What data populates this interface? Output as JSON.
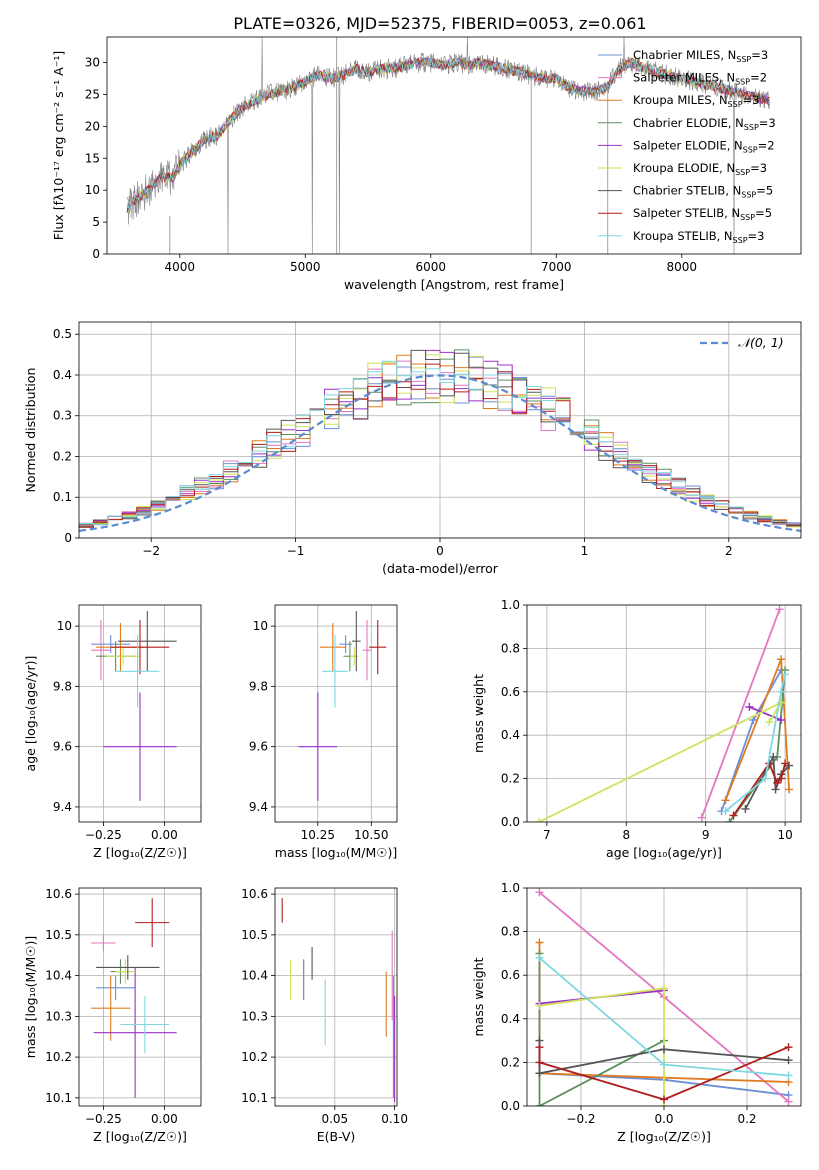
{
  "figure": {
    "title": "PLATE=0326, MJD=52375, FIBERID=0053, z=0.061"
  },
  "legend_names": [
    {
      "pre": "Chabrier MILES, N",
      "sub": "SSP",
      "post": "=3",
      "color": "#6b8fd6"
    },
    {
      "pre": "Salpeter MILES, N",
      "sub": "SSP",
      "post": "=2",
      "color": "#e377c2"
    },
    {
      "pre": "Kroupa MILES, N",
      "sub": "SSP",
      "post": "=3",
      "color": "#e07b1f"
    },
    {
      "pre": "Chabrier ELODIE, N",
      "sub": "SSP",
      "post": "=3",
      "color": "#5f8f5f"
    },
    {
      "pre": "Salpeter ELODIE, N",
      "sub": "SSP",
      "post": "=2",
      "color": "#9b30c8"
    },
    {
      "pre": "Kroupa ELODIE, N",
      "sub": "SSP",
      "post": "=3",
      "color": "#cfe35a"
    },
    {
      "pre": "Chabrier STELIB, N",
      "sub": "SSP",
      "post": "=5",
      "color": "#555555"
    },
    {
      "pre": "Salpeter STELIB, N",
      "sub": "SSP",
      "post": "=5",
      "color": "#b01d1d"
    },
    {
      "pre": "Kroupa STELIB, N",
      "sub": "SSP",
      "post": "=3",
      "color": "#7fd8e0"
    }
  ],
  "chart_data": [
    {
      "type": "line",
      "xlabel": "wavelength [Angstrom, rest frame]",
      "ylabel": "Flux [fλ10⁻¹⁷ erg cm⁻² s⁻¹ A⁻¹]",
      "xlim": [
        3420,
        8950
      ],
      "ylim": [
        0,
        34
      ],
      "xticks": [
        4000,
        5000,
        6000,
        7000,
        8000
      ],
      "yticks": [
        0,
        5,
        10,
        15,
        20,
        25,
        30
      ],
      "grid": false,
      "legend": "right",
      "data_color": "#7f7f7f",
      "spectrum": {
        "x": [
          3580,
          3620,
          3680,
          3750,
          3850,
          3950,
          4000,
          4100,
          4200,
          4300,
          4400,
          4500,
          4600,
          4700,
          4800,
          4900,
          5000,
          5100,
          5200,
          5300,
          5400,
          5500,
          5600,
          5700,
          5800,
          5900,
          6000,
          6100,
          6200,
          6300,
          6400,
          6500,
          6600,
          6700,
          6800,
          6900,
          7000,
          7100,
          7200,
          7300,
          7400,
          7500,
          7600,
          7700,
          7800,
          7900,
          8000,
          8100,
          8200,
          8300,
          8400,
          8500,
          8600,
          8700
        ],
        "y": [
          7,
          8,
          9,
          10,
          12,
          12,
          14,
          16,
          18,
          18.5,
          21,
          23,
          24,
          25,
          25.5,
          26,
          27,
          28,
          27.5,
          28,
          29,
          28.5,
          29,
          29,
          29.5,
          30,
          30,
          29.5,
          30,
          29.5,
          30,
          29.5,
          29,
          28.5,
          28,
          27.5,
          27.5,
          26,
          25.5,
          25.5,
          26,
          29,
          30,
          29,
          28.5,
          28,
          27.5,
          27,
          26.5,
          26,
          25.5,
          25,
          24.5,
          24
        ]
      },
      "model_end_x": [
        8700,
        8600,
        8350,
        8700,
        8700,
        8600,
        8700,
        8700,
        8450
      ]
    },
    {
      "type": "step",
      "xlabel": "(data-model)/error",
      "ylabel": "Normed distribution",
      "xlim": [
        -2.5,
        2.5
      ],
      "ylim": [
        0,
        0.53
      ],
      "xticks": [
        -2,
        -1,
        0,
        1,
        2
      ],
      "yticks": [
        0,
        0.1,
        0.2,
        0.3,
        0.4,
        0.5
      ],
      "grid": true,
      "bin_edges": [
        -2.5,
        -2.4,
        -2.3,
        -2.2,
        -2.1,
        -2.0,
        -1.9,
        -1.8,
        -1.7,
        -1.6,
        -1.5,
        -1.4,
        -1.3,
        -1.2,
        -1.1,
        -1.0,
        -0.9,
        -0.8,
        -0.7,
        -0.6,
        -0.5,
        -0.4,
        -0.3,
        -0.2,
        -0.1,
        0.0,
        0.1,
        0.2,
        0.3,
        0.4,
        0.5,
        0.6,
        0.7,
        0.8,
        0.9,
        1.0,
        1.1,
        1.2,
        1.3,
        1.4,
        1.5,
        1.6,
        1.7,
        1.8,
        1.9,
        2.0,
        2.1,
        2.2,
        2.3,
        2.4,
        2.5
      ],
      "reference_curve": {
        "label": "𝒩(0, 1)",
        "color": "#5b8bd0",
        "legend": "top-right"
      },
      "residual_seeds": [
        1,
        2,
        3,
        4,
        5,
        6,
        7,
        8,
        9
      ]
    },
    {
      "type": "errorbar",
      "xlabel": "Z [log₁₀(Z/Z☉)]",
      "ylabel": "age  [log₁₀(age/yr)]",
      "xlim": [
        -0.35,
        0.15
      ],
      "ylim": [
        9.35,
        10.07
      ],
      "xticks": [
        -0.25,
        0.0
      ],
      "xticklabels": [
        "−0.25",
        "0.00"
      ],
      "yticks": [
        9.4,
        9.6,
        9.8,
        10.0
      ],
      "points": [
        {
          "x": -0.22,
          "xerr": 0.08,
          "y": 9.94,
          "yerr": 0.03
        },
        {
          "x": -0.26,
          "xerr": 0.04,
          "y": 9.92,
          "yerr": 0.1
        },
        {
          "x": -0.18,
          "xerr": 0.1,
          "y": 9.93,
          "yerr": 0.08
        },
        {
          "x": -0.2,
          "xerr": 0.08,
          "y": 9.9,
          "yerr": 0.05
        },
        {
          "x": -0.1,
          "xerr": 0.15,
          "y": 9.6,
          "yerr": 0.18
        },
        {
          "x": -0.17,
          "xerr": 0.07,
          "y": 9.9,
          "yerr": 0.03
        },
        {
          "x": -0.07,
          "xerr": 0.12,
          "y": 9.95,
          "yerr": 0.1
        },
        {
          "x": -0.1,
          "xerr": 0.12,
          "y": 9.93,
          "yerr": 0.09
        },
        {
          "x": -0.11,
          "xerr": 0.09,
          "y": 9.85,
          "yerr": 0.12
        }
      ]
    },
    {
      "type": "errorbar",
      "xlabel": "mass [log₁₀(M/M☉)]",
      "ylabel": "",
      "xlim": [
        10.05,
        10.62
      ],
      "ylim": [
        9.35,
        10.07
      ],
      "xticks": [
        10.25,
        10.5
      ],
      "xticklabels": [
        "10.25",
        "10.50"
      ],
      "yticks": [
        9.4,
        9.6,
        9.8,
        10.0
      ],
      "points": [
        {
          "x": 10.38,
          "xerr": 0.03,
          "y": 9.94,
          "yerr": 0.03
        },
        {
          "x": 10.48,
          "xerr": 0.02,
          "y": 9.92,
          "yerr": 0.1
        },
        {
          "x": 10.32,
          "xerr": 0.06,
          "y": 9.93,
          "yerr": 0.08
        },
        {
          "x": 10.4,
          "xerr": 0.03,
          "y": 9.9,
          "yerr": 0.05
        },
        {
          "x": 10.25,
          "xerr": 0.09,
          "y": 9.6,
          "yerr": 0.18
        },
        {
          "x": 10.42,
          "xerr": 0.02,
          "y": 9.9,
          "yerr": 0.03
        },
        {
          "x": 10.43,
          "xerr": 0.02,
          "y": 9.95,
          "yerr": 0.1
        },
        {
          "x": 10.53,
          "xerr": 0.04,
          "y": 9.93,
          "yerr": 0.09
        },
        {
          "x": 10.33,
          "xerr": 0.06,
          "y": 9.85,
          "yerr": 0.12
        }
      ]
    },
    {
      "type": "line",
      "xlabel": "age  [log₁₀(age/yr)]",
      "ylabel": "mass weight",
      "xlim": [
        6.75,
        10.2
      ],
      "ylim": [
        0,
        1
      ],
      "xticks": [
        7,
        8,
        9,
        10
      ],
      "yticks": [
        0,
        0.2,
        0.4,
        0.6,
        0.8,
        1.0
      ],
      "yticklabels": [
        "0.0",
        "0.2",
        "0.4",
        "0.6",
        "0.8",
        "1.0"
      ],
      "grid": true,
      "series": [
        {
          "x": [
            9.2,
            9.6,
            9.95
          ],
          "y": [
            0.05,
            0.47,
            0.7
          ]
        },
        {
          "x": [
            8.95,
            9.93
          ],
          "y": [
            0.02,
            0.98
          ]
        },
        {
          "x": [
            9.25,
            9.95,
            10.05
          ],
          "y": [
            0.1,
            0.75,
            0.15
          ]
        },
        {
          "x": [
            9.3,
            9.9,
            10.0
          ],
          "y": [
            0.0,
            0.3,
            0.7
          ]
        },
        {
          "x": [
            9.55,
            9.95
          ],
          "y": [
            0.53,
            0.47
          ]
        },
        {
          "x": [
            6.9,
            9.95,
            9.8
          ],
          "y": [
            0.0,
            0.55,
            0.46
          ]
        },
        {
          "x": [
            9.5,
            9.85,
            9.88,
            9.95,
            10.05
          ],
          "y": [
            0.06,
            0.3,
            0.15,
            0.22,
            0.26
          ]
        },
        {
          "x": [
            9.35,
            9.8,
            9.9,
            9.95,
            10.0
          ],
          "y": [
            0.03,
            0.27,
            0.18,
            0.2,
            0.27
          ]
        },
        {
          "x": [
            9.25,
            9.75,
            9.95,
            10.0
          ],
          "y": [
            0.05,
            0.2,
            0.6,
            0.68
          ]
        }
      ]
    },
    {
      "type": "errorbar",
      "xlabel": "Z [log₁₀(Z/Z☉)]",
      "ylabel": "mass [log₁₀(M/M☉)]",
      "xlim": [
        -0.35,
        0.15
      ],
      "ylim": [
        10.08,
        10.615
      ],
      "xticks": [
        -0.25,
        0.0
      ],
      "xticklabels": [
        "−0.25",
        "0.00"
      ],
      "yticks": [
        10.1,
        10.2,
        10.3,
        10.4,
        10.5,
        10.6
      ],
      "points": [
        {
          "x": -0.2,
          "xerr": 0.08,
          "y": 10.37,
          "yerr": 0.03
        },
        {
          "x": -0.25,
          "xerr": 0.05,
          "y": 10.48,
          "yerr": 0.02
        },
        {
          "x": -0.22,
          "xerr": 0.08,
          "y": 10.32,
          "yerr": 0.08
        },
        {
          "x": -0.18,
          "xerr": 0.04,
          "y": 10.41,
          "yerr": 0.03
        },
        {
          "x": -0.12,
          "xerr": 0.17,
          "y": 10.26,
          "yerr": 0.16
        },
        {
          "x": -0.16,
          "xerr": 0.04,
          "y": 10.41,
          "yerr": 0.03
        },
        {
          "x": -0.15,
          "xerr": 0.13,
          "y": 10.42,
          "yerr": 0.03
        },
        {
          "x": -0.05,
          "xerr": 0.07,
          "y": 10.53,
          "yerr": 0.06
        },
        {
          "x": -0.08,
          "xerr": 0.1,
          "y": 10.28,
          "yerr": 0.07
        }
      ]
    },
    {
      "type": "errorbar",
      "xlabel": "E(B-V)",
      "ylabel": "",
      "xlim": [
        0.0,
        0.102
      ],
      "ylim": [
        10.08,
        10.615
      ],
      "xticks": [
        0.05,
        0.1
      ],
      "xticklabels": [
        "0.05",
        "0.10"
      ],
      "yticks": [
        10.1,
        10.2,
        10.3,
        10.4,
        10.5,
        10.6
      ],
      "points": [
        {
          "x": 0.099,
          "xerr": 0.0,
          "y": 10.25,
          "yerr": 0.15
        },
        {
          "x": 0.098,
          "xerr": 0.0,
          "y": 10.4,
          "yerr": 0.11
        },
        {
          "x": 0.093,
          "xerr": 0.0,
          "y": 10.33,
          "yerr": 0.08
        },
        {
          "x": 0.024,
          "xerr": 0.0,
          "y": 10.39,
          "yerr": 0.05
        },
        {
          "x": 0.1,
          "xerr": 0.0,
          "y": 10.22,
          "yerr": 0.13
        },
        {
          "x": 0.013,
          "xerr": 0.0,
          "y": 10.39,
          "yerr": 0.05
        },
        {
          "x": 0.031,
          "xerr": 0.0,
          "y": 10.43,
          "yerr": 0.04
        },
        {
          "x": 0.006,
          "xerr": 0.0,
          "y": 10.56,
          "yerr": 0.03
        },
        {
          "x": 0.042,
          "xerr": 0.0,
          "y": 10.31,
          "yerr": 0.08
        }
      ]
    },
    {
      "type": "line",
      "xlabel": "Z [log₁₀(Z/Z☉)]",
      "ylabel": "mass weight",
      "xlim": [
        -0.33,
        0.33
      ],
      "ylim": [
        0,
        1
      ],
      "xticks": [
        -0.2,
        0.0,
        0.2
      ],
      "xticklabels": [
        "−0.2",
        "0.0",
        "0.2"
      ],
      "yticks": [
        0,
        0.2,
        0.4,
        0.6,
        0.8,
        1.0
      ],
      "yticklabels": [
        "0.0",
        "0.2",
        "0.4",
        "0.6",
        "0.8",
        "1.0"
      ],
      "grid": true,
      "series": [
        {
          "x": [
            -0.3,
            0.0,
            0.3
          ],
          "y": [
            0.15,
            0.12,
            0.05
          ]
        },
        {
          "x": [
            -0.3,
            0.0,
            0.3
          ],
          "y": [
            0.98,
            0.5,
            0.02
          ]
        },
        {
          "x": [
            -0.3,
            -0.3,
            0.0,
            0.3
          ],
          "y": [
            0.75,
            0.15,
            0.13,
            0.11
          ]
        },
        {
          "x": [
            -0.3,
            -0.3,
            0.0
          ],
          "y": [
            0.7,
            0.0,
            0.3
          ]
        },
        {
          "x": [
            -0.3,
            0.0
          ],
          "y": [
            0.47,
            0.53
          ]
        },
        {
          "x": [
            -0.3,
            0.0,
            0.0
          ],
          "y": [
            0.46,
            0.54,
            0.0
          ]
        },
        {
          "x": [
            -0.3,
            -0.3,
            0.0,
            0.3
          ],
          "y": [
            0.3,
            0.15,
            0.26,
            0.21
          ]
        },
        {
          "x": [
            -0.3,
            -0.3,
            0.0,
            0.3
          ],
          "y": [
            0.27,
            0.2,
            0.03,
            0.27
          ]
        },
        {
          "x": [
            -0.3,
            0.0,
            0.3
          ],
          "y": [
            0.68,
            0.19,
            0.14
          ]
        }
      ]
    }
  ]
}
